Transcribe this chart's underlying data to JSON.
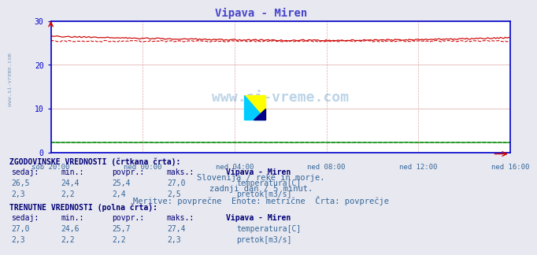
{
  "title": "Vipava - Miren",
  "title_color": "#4444cc",
  "bg_color": "#e8e8f0",
  "plot_bg_color": "#ffffff",
  "grid_color_x": "#ddaaaa",
  "grid_color_y": "#aaaadd",
  "axis_color": "#0000cc",
  "text_color": "#336699",
  "dark_text_color": "#000077",
  "n_points": 288,
  "temp_avg_val": 25.4,
  "temp_hist_avg": 25.4,
  "temp_curr_min": 24.6,
  "temp_curr_max": 27.4,
  "pretok_val": 2.3,
  "ymin": 0,
  "ymax": 30,
  "yticks": [
    0,
    10,
    20,
    30
  ],
  "xlabels": [
    "sob 20:00",
    "ned 00:00",
    "ned 04:00",
    "ned 08:00",
    "ned 12:00",
    "ned 16:00"
  ],
  "subtitle1": "Slovenija / reke in morje.",
  "subtitle2": "zadnji dan / 5 minut.",
  "subtitle3": "Meritve: povprečne  Enote: metrične  Črta: povprečje",
  "hist_label": "ZGODOVINSKE VREDNOSTI (črtkana črta):",
  "curr_label": "TRENUTNE VREDNOSTI (polna črta):",
  "col_headers": [
    "sedaj:",
    "min.:",
    "povpr.:",
    "maks.:",
    "Vipava - Miren"
  ],
  "hist_temp_row": [
    "26,5",
    "24,4",
    "25,4",
    "27,0"
  ],
  "hist_pretok_row": [
    "2,3",
    "2,2",
    "2,4",
    "2,5"
  ],
  "curr_temp_row": [
    "27,0",
    "24,6",
    "25,7",
    "27,4"
  ],
  "curr_pretok_row": [
    "2,3",
    "2,2",
    "2,2",
    "2,3"
  ],
  "temp_color": "#cc0000",
  "pretok_color": "#008800",
  "watermark_color": "#1166aa",
  "watermark_text": "www.si-vreme.com",
  "left_watermark": "www.si-vreme.com"
}
